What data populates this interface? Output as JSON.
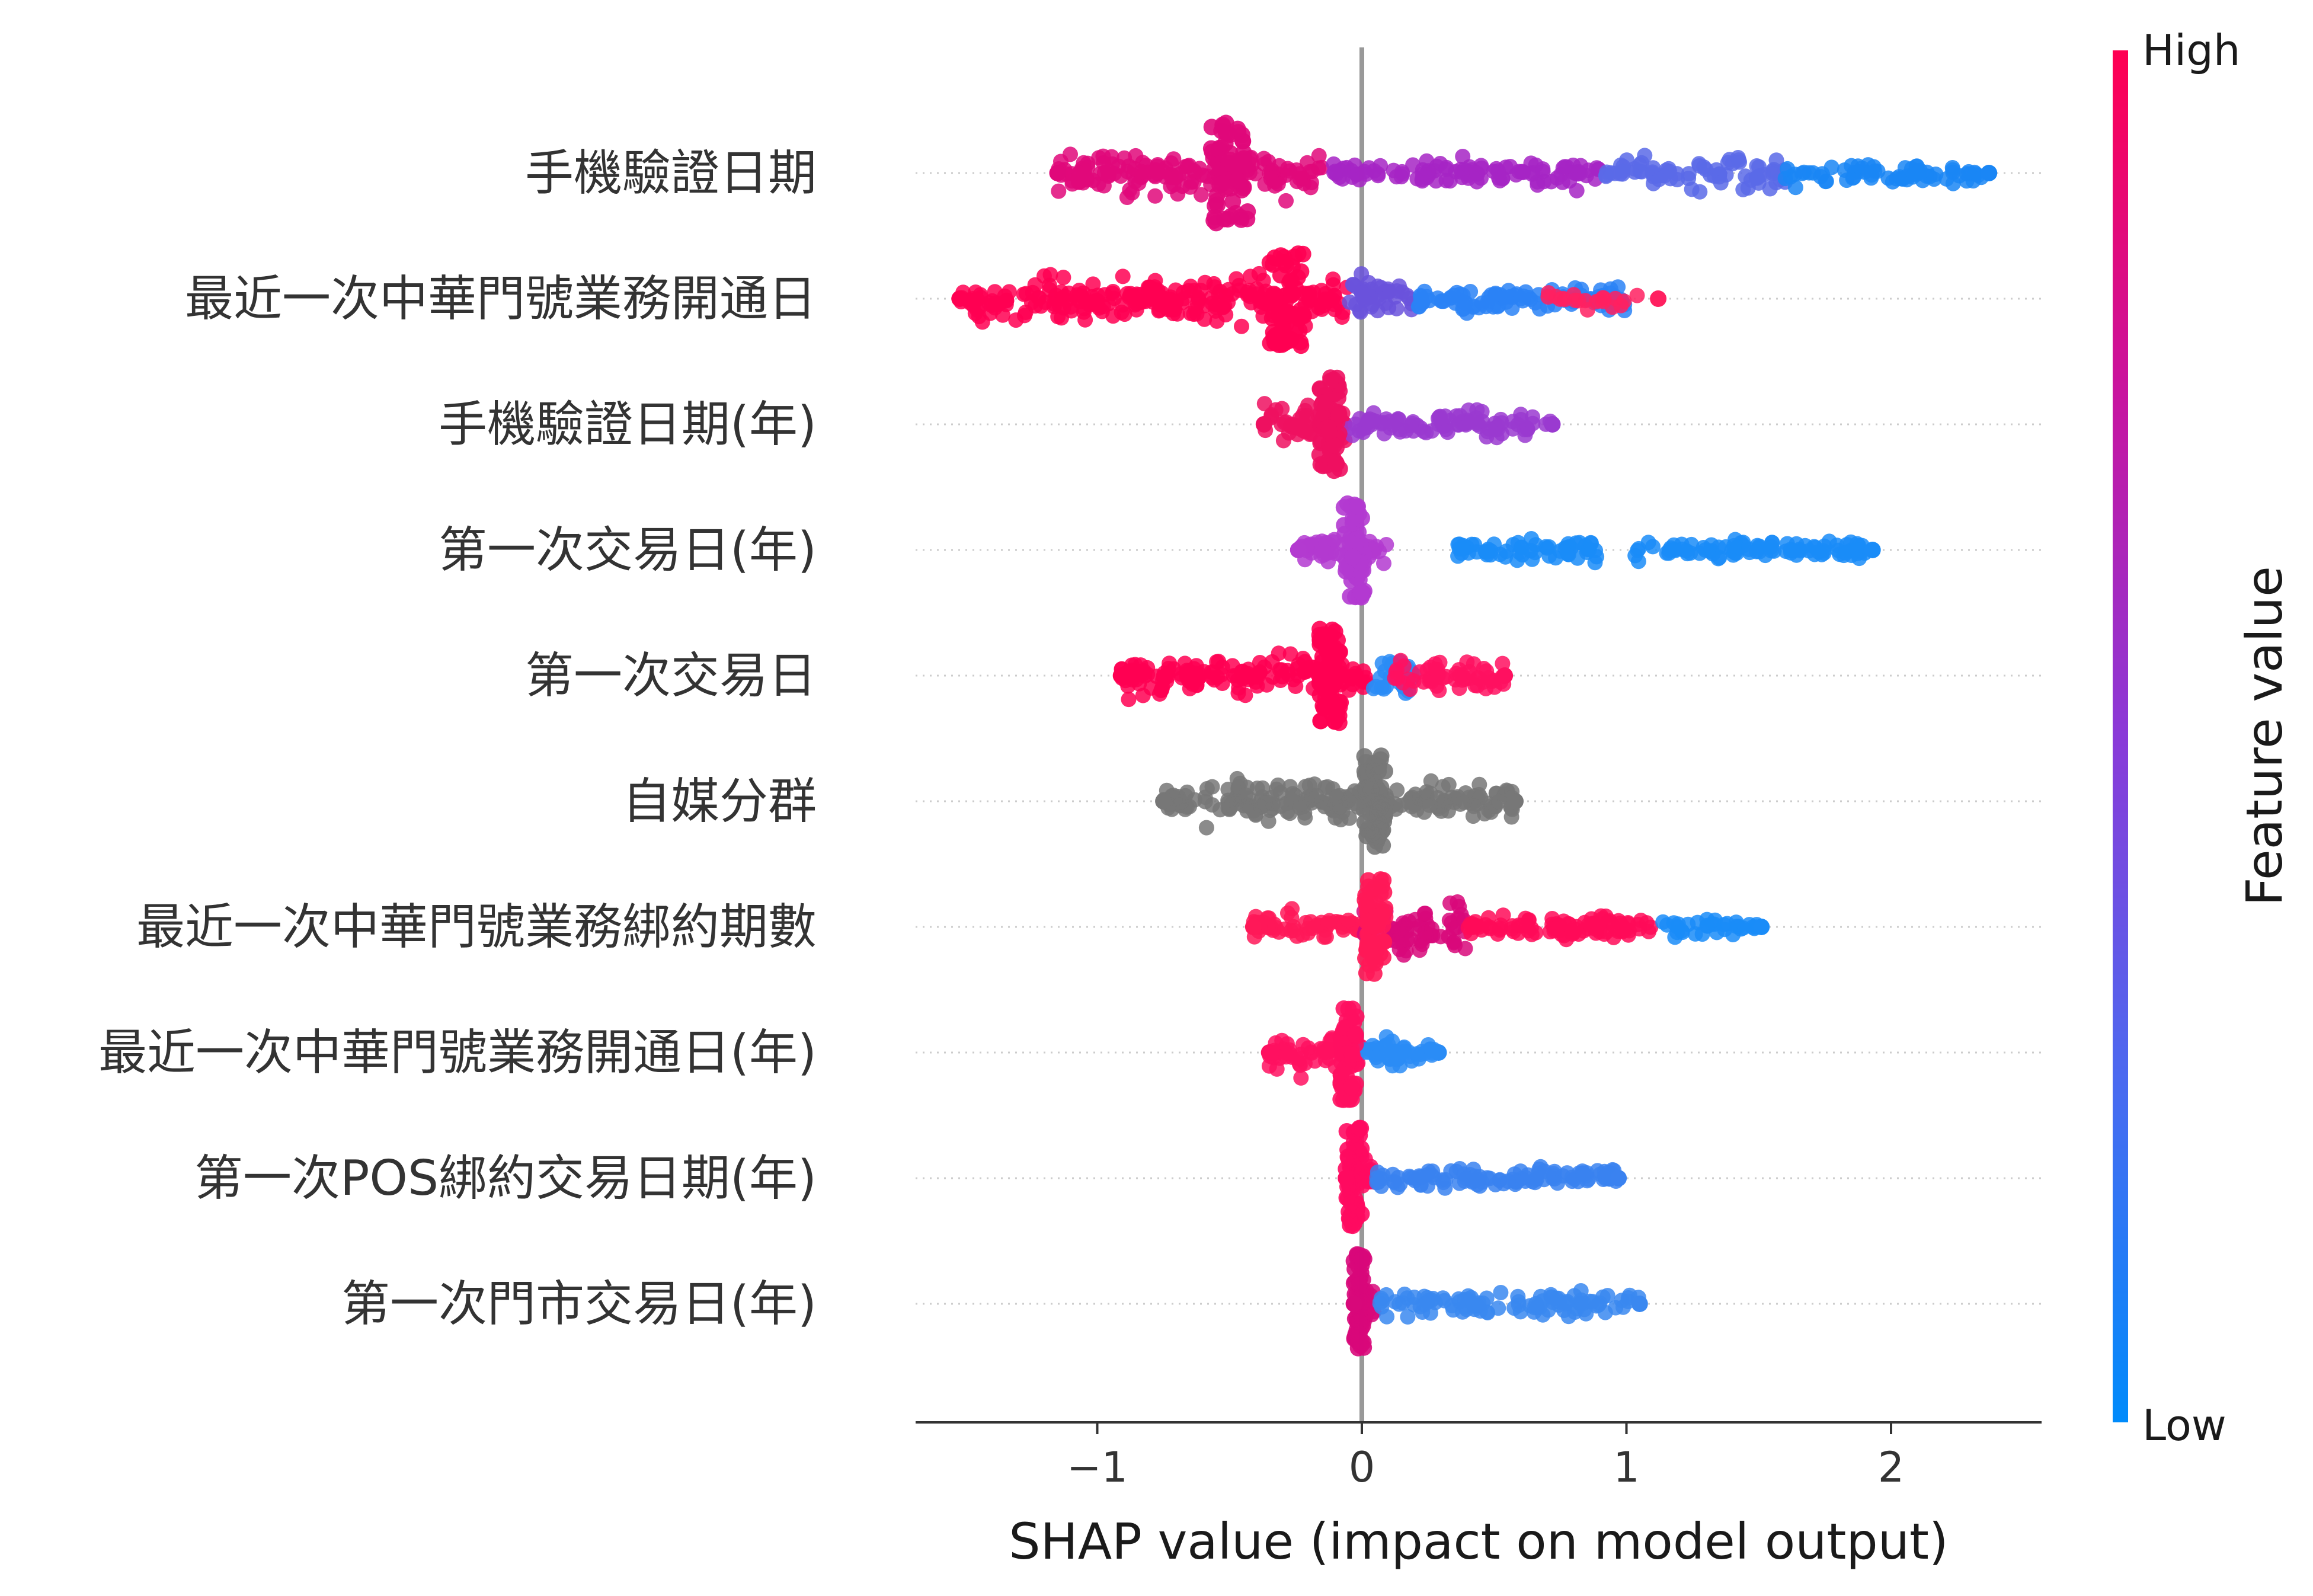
{
  "chart_data": {
    "type": "scatter",
    "subtype": "shap-beeswarm",
    "xlabel": "SHAP value (impact on model output)",
    "xlim": [
      -1.68,
      2.58
    ],
    "xticks": [
      {
        "value": -1,
        "label": "−1"
      },
      {
        "value": 0,
        "label": "0"
      },
      {
        "value": 1,
        "label": "1"
      },
      {
        "value": 2,
        "label": "2"
      }
    ],
    "colorbar": {
      "label": "Feature value",
      "high_label": "High",
      "low_label": "Low",
      "high_color": "#ff0052",
      "low_color": "#008bfb"
    },
    "zero_line_color": "#999999",
    "missing_color": "#777777",
    "features": [
      {
        "name": "手機驗證日期",
        "min": -1.15,
        "max": 2.37,
        "dense_center": -0.5,
        "dense_halfwidth": 0.07,
        "dense_height": 0.85,
        "segments": [
          {
            "from": -1.15,
            "to": -0.15,
            "color": "#e0087a",
            "density": 0.9,
            "spread": 0.35
          },
          {
            "from": -0.15,
            "to": 0.9,
            "color": "#a624c4",
            "density": 0.6,
            "spread": 0.25
          },
          {
            "from": 0.9,
            "to": 1.6,
            "color": "#5a6ae8",
            "density": 0.6,
            "spread": 0.25
          },
          {
            "from": 1.6,
            "to": 2.37,
            "color": "#1a86f5",
            "density": 0.5,
            "spread": 0.2
          }
        ]
      },
      {
        "name": "最近一次中華門號業務開通日",
        "min": -1.52,
        "max": 1.12,
        "dense_center": -0.28,
        "dense_halfwidth": 0.07,
        "dense_height": 0.8,
        "segments": [
          {
            "from": -1.52,
            "to": -0.05,
            "color": "#ff0052",
            "density": 1.0,
            "spread": 0.35
          },
          {
            "from": -0.05,
            "to": 0.2,
            "color": "#6a52dc",
            "density": 0.8,
            "spread": 0.35
          },
          {
            "from": 0.2,
            "to": 1.0,
            "color": "#2a82f6",
            "density": 0.8,
            "spread": 0.2
          },
          {
            "from": 0.7,
            "to": 1.12,
            "color": "#ff2060",
            "density": 0.2,
            "spread": 0.15
          }
        ]
      },
      {
        "name": "手機驗證日期(年)",
        "min": -0.37,
        "max": 0.72,
        "dense_center": -0.12,
        "dense_halfwidth": 0.04,
        "dense_height": 0.8,
        "segments": [
          {
            "from": -0.37,
            "to": -0.05,
            "color": "#ee1060",
            "density": 0.9,
            "spread": 0.3
          },
          {
            "from": -0.05,
            "to": 0.72,
            "color": "#9a3ad0",
            "density": 0.7,
            "spread": 0.22
          }
        ]
      },
      {
        "name": "第一次交易日(年)",
        "min": -0.24,
        "max": 1.93,
        "dense_center": -0.03,
        "dense_halfwidth": 0.04,
        "dense_height": 0.8,
        "segments": [
          {
            "from": -0.24,
            "to": 0.1,
            "color": "#b33ad0",
            "density": 0.8,
            "spread": 0.2
          },
          {
            "from": 0.35,
            "to": 0.9,
            "color": "#1a8cf8",
            "density": 0.6,
            "spread": 0.18
          },
          {
            "from": 1.03,
            "to": 1.93,
            "color": "#1a8cf8",
            "density": 0.6,
            "spread": 0.18
          }
        ]
      },
      {
        "name": "第一次交易日",
        "min": -0.91,
        "max": 0.54,
        "dense_center": -0.12,
        "dense_halfwidth": 0.04,
        "dense_height": 0.8,
        "segments": [
          {
            "from": -0.91,
            "to": 0.02,
            "color": "#ff0052",
            "density": 1.0,
            "spread": 0.3
          },
          {
            "from": 0.02,
            "to": 0.2,
            "color": "#2a8cf6",
            "density": 0.7,
            "spread": 0.4
          },
          {
            "from": 0.12,
            "to": 0.54,
            "color": "#ff1060",
            "density": 0.7,
            "spread": 0.3
          }
        ]
      },
      {
        "name": "自媒分群",
        "min": -0.75,
        "max": 0.58,
        "dense_center": 0.05,
        "dense_halfwidth": 0.04,
        "dense_height": 0.8,
        "segments": [
          {
            "from": -0.75,
            "to": 0.58,
            "color": "#777777",
            "density": 1.0,
            "spread": 0.3
          }
        ]
      },
      {
        "name": "最近一次中華門號業務綁約期數",
        "min": -0.41,
        "max": 1.51,
        "dense_center": 0.05,
        "dense_halfwidth": 0.04,
        "dense_height": 0.8,
        "segments": [
          {
            "from": -0.41,
            "to": 0.0,
            "color": "#ff1858",
            "density": 0.8,
            "spread": 0.2
          },
          {
            "from": 0.0,
            "to": 0.4,
            "color": "#d8087a",
            "density": 0.9,
            "spread": 0.45
          },
          {
            "from": 0.4,
            "to": 1.1,
            "color": "#ff0a58",
            "density": 0.8,
            "spread": 0.2
          },
          {
            "from": 1.1,
            "to": 1.51,
            "color": "#1a8cf8",
            "density": 0.4,
            "spread": 0.15
          }
        ]
      },
      {
        "name": "最近一次中華門號業務開通日(年)",
        "min": -0.35,
        "max": 0.29,
        "dense_center": -0.05,
        "dense_halfwidth": 0.03,
        "dense_height": 0.8,
        "segments": [
          {
            "from": -0.35,
            "to": 0.0,
            "color": "#ff1060",
            "density": 0.9,
            "spread": 0.3
          },
          {
            "from": 0.0,
            "to": 0.29,
            "color": "#2a8cf6",
            "density": 0.8,
            "spread": 0.2
          }
        ]
      },
      {
        "name": "第一次POS綁約交易日期(年)",
        "min": -0.06,
        "max": 0.97,
        "dense_center": -0.03,
        "dense_halfwidth": 0.03,
        "dense_height": 0.85,
        "segments": [
          {
            "from": -0.06,
            "to": 0.05,
            "color": "#ff0a60",
            "density": 0.9,
            "spread": 0.3
          },
          {
            "from": 0.05,
            "to": 0.97,
            "color": "#3a82f0",
            "density": 0.7,
            "spread": 0.18
          }
        ]
      },
      {
        "name": "第一次門市交易日(年)",
        "min": -0.03,
        "max": 1.05,
        "dense_center": -0.01,
        "dense_halfwidth": 0.02,
        "dense_height": 0.85,
        "segments": [
          {
            "from": -0.03,
            "to": 0.05,
            "color": "#d8087a",
            "density": 0.9,
            "spread": 0.3
          },
          {
            "from": 0.05,
            "to": 1.05,
            "color": "#3a88f0",
            "density": 0.6,
            "spread": 0.18
          }
        ]
      }
    ]
  }
}
